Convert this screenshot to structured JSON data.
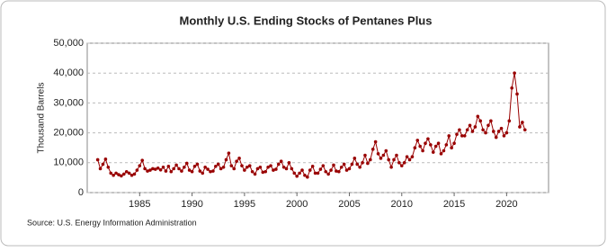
{
  "chart_data": {
    "type": "line",
    "title": "Monthly U.S. Ending Stocks of Pentanes Plus",
    "y_label": "Thousand Barrels",
    "source": "Source: U.S. Energy Information Administration",
    "color": "#990000",
    "grid": true,
    "xlim": [
      1980,
      2024
    ],
    "xticks": [
      1985,
      1990,
      1995,
      2000,
      2005,
      2010,
      2015,
      2020
    ],
    "ylim": [
      0,
      50000
    ],
    "yticks": [
      0,
      {
        "value": 10000,
        "label": "10,000"
      },
      {
        "value": 20000,
        "label": "20,000"
      },
      {
        "value": 30000,
        "label": "30,000"
      },
      {
        "value": 40000,
        "label": "40,000"
      },
      {
        "value": 50000,
        "label": "50,000"
      }
    ],
    "x": [
      1981,
      1981.25,
      1981.5,
      1981.75,
      1982,
      1982.25,
      1982.5,
      1982.75,
      1983,
      1983.25,
      1983.5,
      1983.75,
      1984,
      1984.25,
      1984.5,
      1984.75,
      1985,
      1985.25,
      1985.5,
      1985.75,
      1986,
      1986.25,
      1986.5,
      1986.75,
      1987,
      1987.25,
      1987.5,
      1987.75,
      1988,
      1988.25,
      1988.5,
      1988.75,
      1989,
      1989.25,
      1989.5,
      1989.75,
      1990,
      1990.25,
      1990.5,
      1990.75,
      1991,
      1991.25,
      1991.5,
      1991.75,
      1992,
      1992.25,
      1992.5,
      1992.75,
      1993,
      1993.25,
      1993.5,
      1993.75,
      1994,
      1994.25,
      1994.5,
      1994.75,
      1995,
      1995.25,
      1995.5,
      1995.75,
      1996,
      1996.25,
      1996.5,
      1996.75,
      1997,
      1997.25,
      1997.5,
      1997.75,
      1998,
      1998.25,
      1998.5,
      1998.75,
      1999,
      1999.25,
      1999.5,
      1999.75,
      2000,
      2000.25,
      2000.5,
      2000.75,
      2001,
      2001.25,
      2001.5,
      2001.75,
      2002,
      2002.25,
      2002.5,
      2002.75,
      2003,
      2003.25,
      2003.5,
      2003.75,
      2004,
      2004.25,
      2004.5,
      2004.75,
      2005,
      2005.25,
      2005.5,
      2005.75,
      2006,
      2006.25,
      2006.5,
      2006.75,
      2007,
      2007.25,
      2007.5,
      2007.75,
      2008,
      2008.25,
      2008.5,
      2008.75,
      2009,
      2009.25,
      2009.5,
      2009.75,
      2010,
      2010.25,
      2010.5,
      2010.75,
      2011,
      2011.25,
      2011.5,
      2011.75,
      2012,
      2012.25,
      2012.5,
      2012.75,
      2013,
      2013.25,
      2013.5,
      2013.75,
      2014,
      2014.25,
      2014.5,
      2014.75,
      2015,
      2015.25,
      2015.5,
      2015.75,
      2016,
      2016.25,
      2016.5,
      2016.75,
      2017,
      2017.25,
      2017.5,
      2017.75,
      2018,
      2018.25,
      2018.5,
      2018.75,
      2019,
      2019.25,
      2019.5,
      2019.75,
      2020,
      2020.25,
      2020.5,
      2020.75,
      2021,
      2021.25,
      2021.5,
      2021.75
    ],
    "values": [
      11000,
      8000,
      9500,
      11200,
      8500,
      6500,
      5800,
      6500,
      6000,
      5600,
      6200,
      7000,
      6500,
      5800,
      6200,
      7500,
      9000,
      10800,
      8000,
      7200,
      7500,
      8000,
      7800,
      8200,
      7600,
      8500,
      7200,
      8800,
      7000,
      8000,
      9200,
      8000,
      7200,
      8500,
      9800,
      7500,
      7000,
      8800,
      9500,
      7200,
      6500,
      8500,
      7800,
      7000,
      7200,
      8800,
      9500,
      8000,
      8500,
      11000,
      13200,
      9000,
      8000,
      10500,
      11500,
      9000,
      7500,
      8500,
      9000,
      7000,
      6200,
      8000,
      8500,
      6800,
      7000,
      8500,
      9000,
      7500,
      7800,
      9500,
      10500,
      8500,
      8000,
      10000,
      8000,
      6500,
      5500,
      6500,
      7500,
      5800,
      5200,
      7500,
      8800,
      6500,
      6500,
      7800,
      9000,
      7000,
      6200,
      7500,
      9200,
      7200,
      7000,
      8500,
      9500,
      7500,
      8000,
      9500,
      11500,
      9500,
      8500,
      10000,
      12500,
      9800,
      11000,
      14500,
      17000,
      13000,
      11500,
      12500,
      14000,
      11000,
      8500,
      11000,
      12500,
      10000,
      9000,
      10000,
      12000,
      11000,
      12000,
      15000,
      17500,
      15500,
      14000,
      16500,
      18000,
      16000,
      13500,
      15500,
      16500,
      13000,
      14000,
      16000,
      19000,
      15000,
      16500,
      19500,
      21000,
      19000,
      19000,
      21000,
      22500,
      20500,
      22000,
      25500,
      24000,
      21000,
      20000,
      22500,
      24000,
      20500,
      18500,
      20500,
      21500,
      19000,
      20000,
      24000,
      35000,
      40000,
      33000,
      22000,
      23500,
      21000
    ]
  }
}
